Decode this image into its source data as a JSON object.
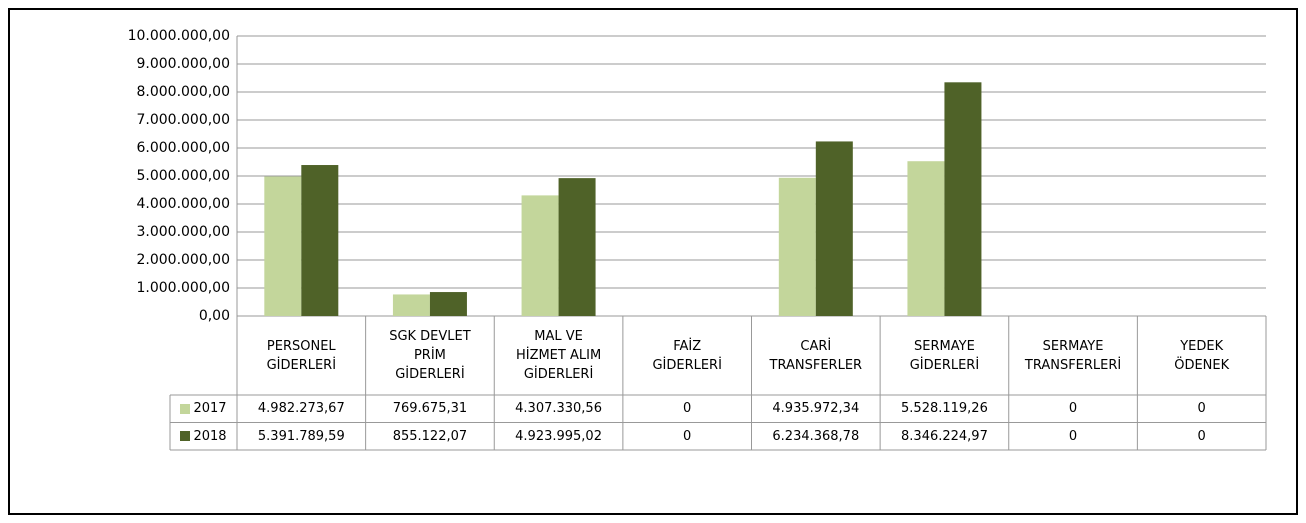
{
  "chart_data": {
    "type": "bar",
    "categories": [
      "PERSONEL\nGİDERLERİ",
      "SGK DEVLET\nPRİM\nGİDERLERİ",
      "MAL VE\nHİZMET ALIM\nGİDERLERİ",
      "FAİZ\nGİDERLERİ",
      "CARİ\nTRANSFERLER",
      "SERMAYE\nGİDERLERİ",
      "SERMAYE\nTRANSFERLERİ",
      "YEDEK\nÖDENEK"
    ],
    "series": [
      {
        "name": "2017",
        "color": "#c3d69b",
        "values": [
          4982273.67,
          769675.31,
          4307330.56,
          0,
          4935972.34,
          5528119.26,
          0,
          0
        ],
        "value_labels": [
          "4.982.273,67",
          "769.675,31",
          "4.307.330,56",
          "0",
          "4.935.972,34",
          "5.528.119,26",
          "0",
          "0"
        ]
      },
      {
        "name": "2018",
        "color": "#4f6228",
        "values": [
          5391789.59,
          855122.07,
          4923995.02,
          0,
          6234368.78,
          8346224.97,
          0,
          0
        ],
        "value_labels": [
          "5.391.789,59",
          "855.122,07",
          "4.923.995,02",
          "0",
          "6.234.368,78",
          "8.346.224,97",
          "0",
          "0"
        ]
      }
    ],
    "ylim": [
      0,
      10000000
    ],
    "yticks": [
      {
        "value": 0,
        "label": "0,00"
      },
      {
        "value": 1000000,
        "label": "1.000.000,00"
      },
      {
        "value": 2000000,
        "label": "2.000.000,00"
      },
      {
        "value": 3000000,
        "label": "3.000.000,00"
      },
      {
        "value": 4000000,
        "label": "4.000.000,00"
      },
      {
        "value": 5000000,
        "label": "5.000.000,00"
      },
      {
        "value": 6000000,
        "label": "6.000.000,00"
      },
      {
        "value": 7000000,
        "label": "7.000.000,00"
      },
      {
        "value": 8000000,
        "label": "8.000.000,00"
      },
      {
        "value": 9000000,
        "label": "9.000.000,00"
      },
      {
        "value": 10000000,
        "label": "10.000.000,00"
      }
    ],
    "grid": true
  }
}
